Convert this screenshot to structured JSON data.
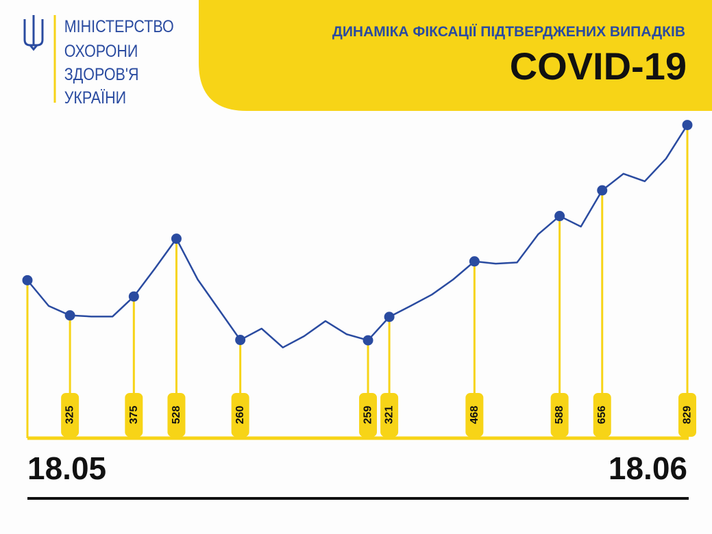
{
  "header": {
    "ministry": [
      "МІНІСТЕРСТВО",
      "ОХОРОНИ",
      "ЗДОРОВ'Я",
      "УКРАЇНИ"
    ]
  },
  "chart_data": {
    "type": "line",
    "title": "ДИНАМІКА ФІКСАЦІЇ ПІДТВЕРДЖЕНИХ ВИПАДКІВ",
    "subtitle": "COVID-19",
    "categories": [
      "18.05",
      null,
      null,
      null,
      null,
      null,
      null,
      null,
      null,
      null,
      null,
      null,
      null,
      null,
      null,
      null,
      null,
      null,
      null,
      null,
      null,
      null,
      null,
      null,
      null,
      null,
      null,
      null,
      null,
      null,
      null,
      "18.06"
    ],
    "values": [
      418,
      350,
      325,
      322,
      322,
      375,
      450,
      528,
      420,
      340,
      260,
      290,
      240,
      270,
      310,
      275,
      259,
      321,
      350,
      380,
      420,
      468,
      462,
      465,
      540,
      588,
      560,
      656,
      700,
      680,
      740,
      829
    ],
    "value_labels": [
      null,
      null,
      "325",
      null,
      null,
      "375",
      null,
      "528",
      null,
      null,
      "260",
      null,
      null,
      null,
      null,
      null,
      "259",
      "321",
      null,
      null,
      null,
      "468",
      null,
      null,
      null,
      "588",
      null,
      "656",
      null,
      null,
      null,
      "829"
    ],
    "color": "#2a4ba0",
    "ylim": [
      0,
      850
    ]
  }
}
